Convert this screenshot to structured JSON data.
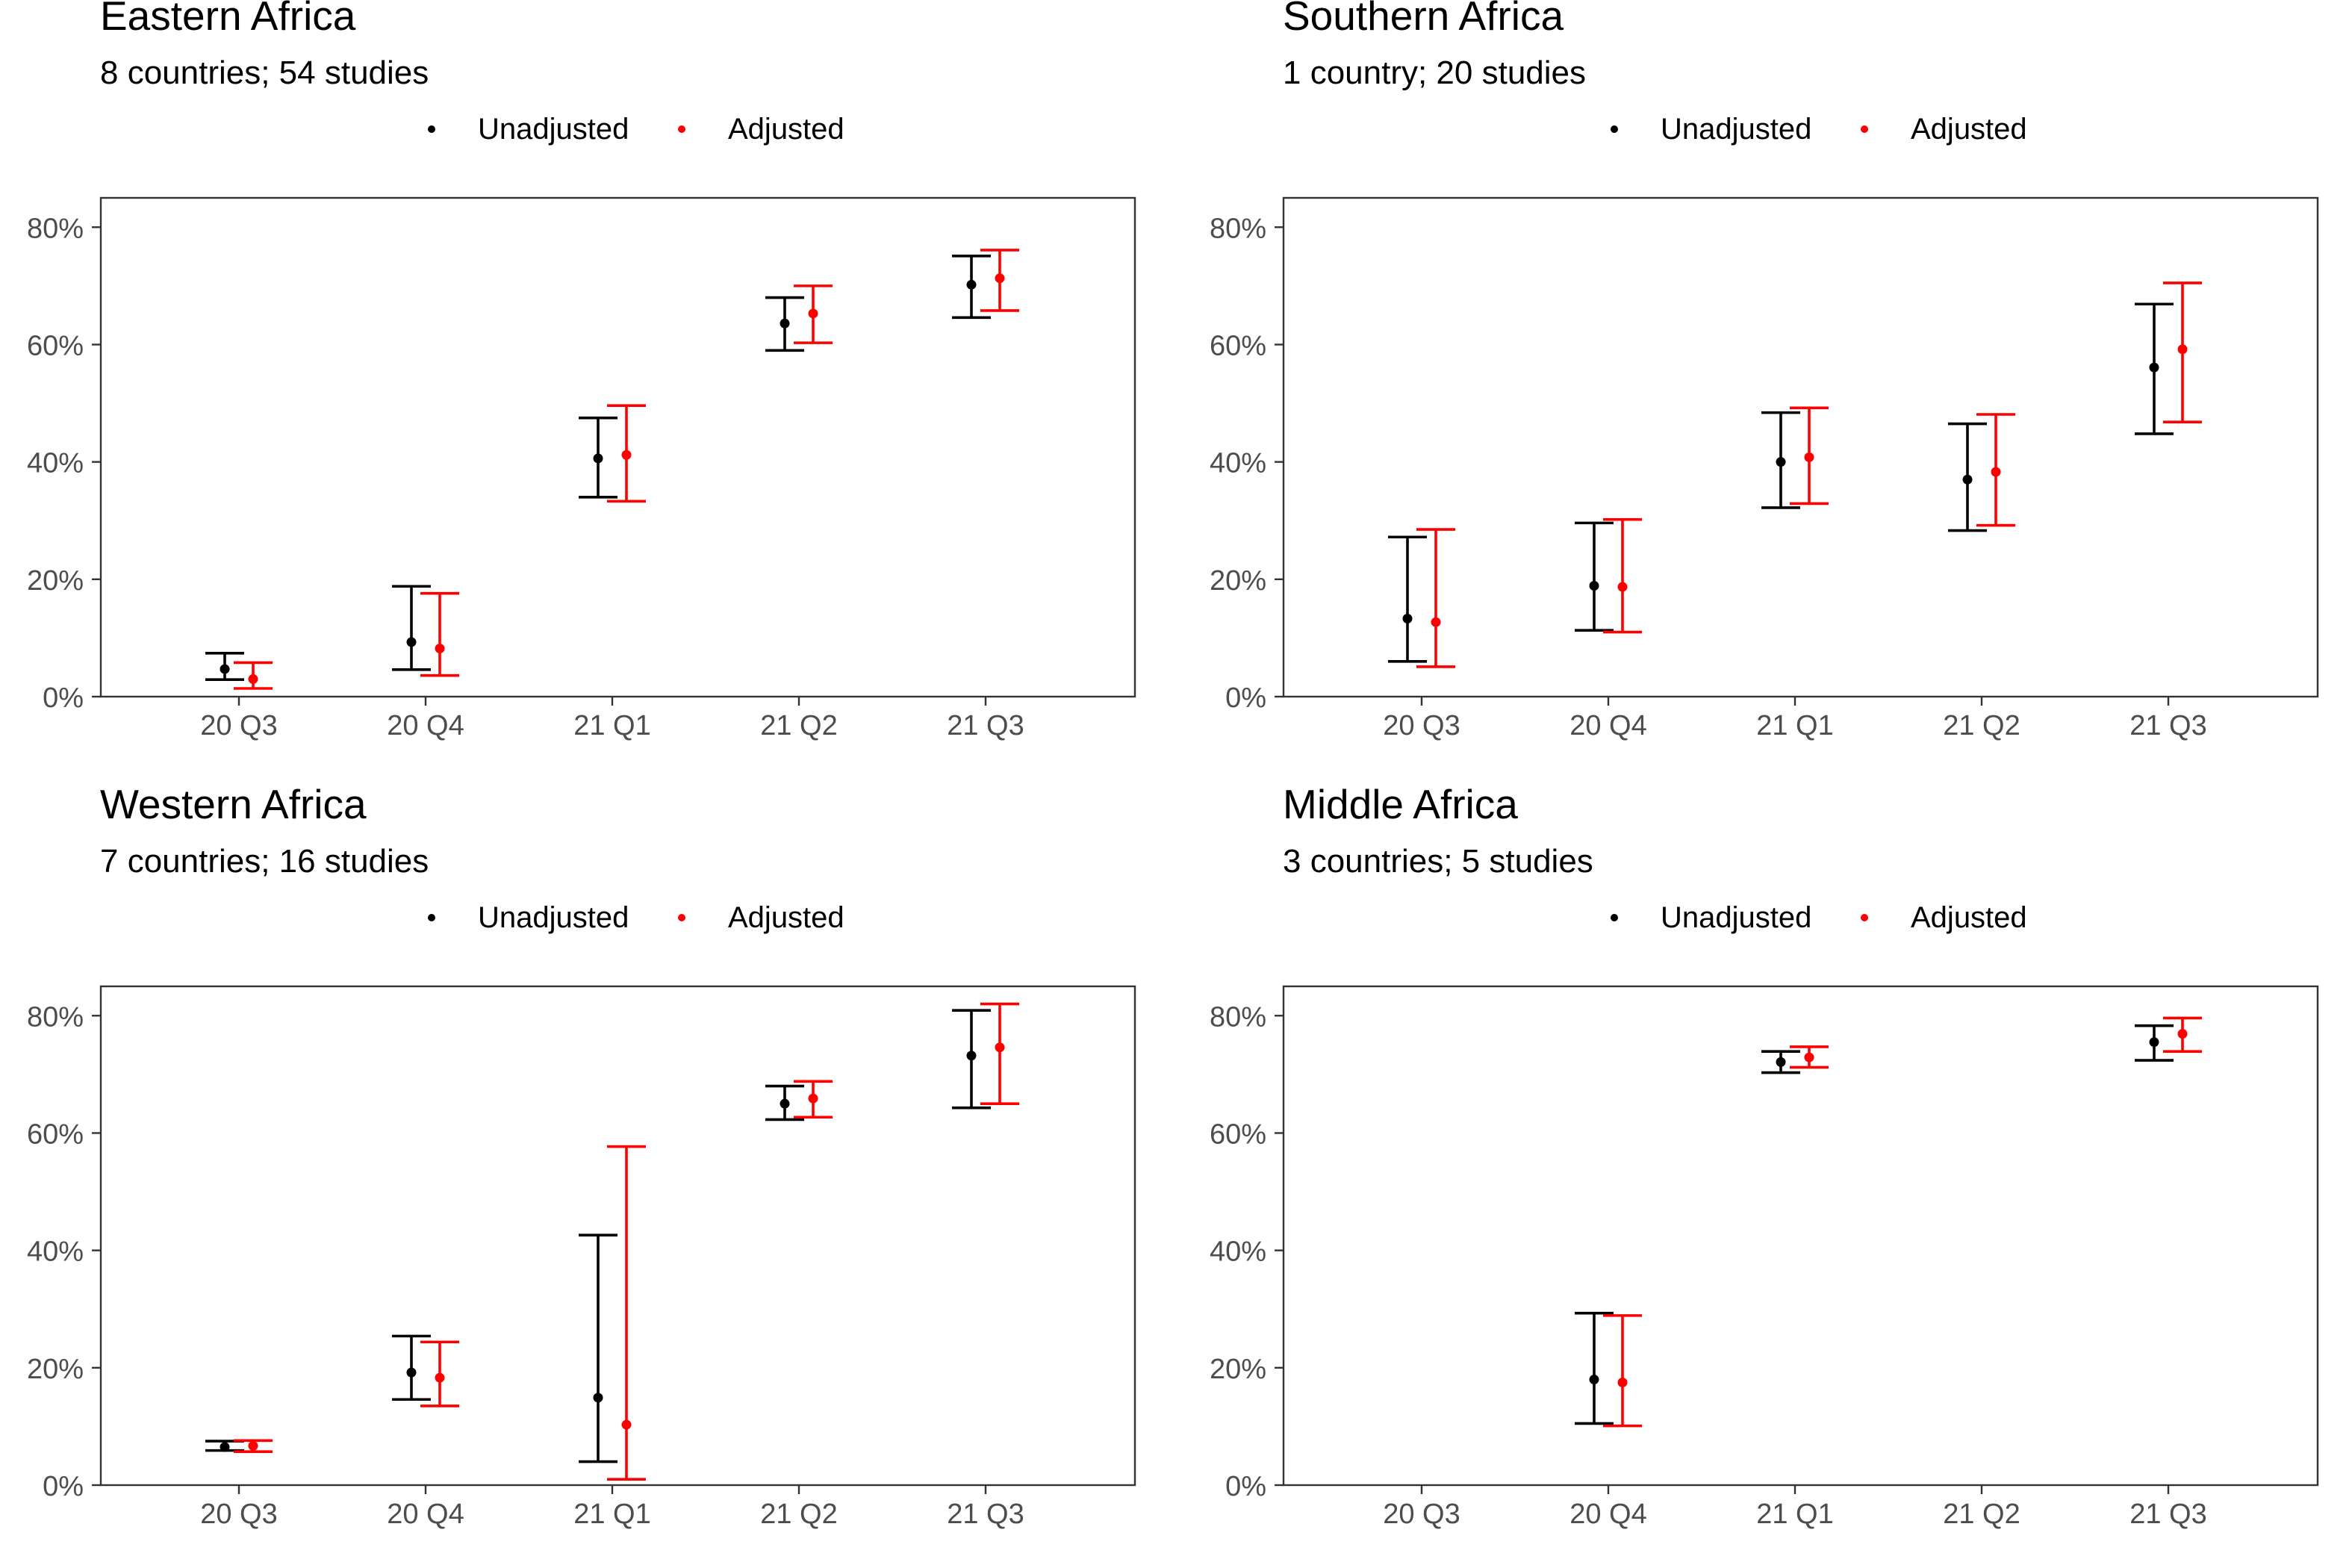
{
  "legend": {
    "unadjusted": "Unadjusted",
    "adjusted": "Adjusted"
  },
  "colors": {
    "unadjusted": "#000000",
    "adjusted": "#ff0000",
    "frame": "#333333",
    "tick_text": "#4d4d4d"
  },
  "chart_data": [
    {
      "type": "scatter",
      "title": "Eastern Africa",
      "subtitle": "8 countries; 54 studies",
      "categories": [
        "20 Q3",
        "20 Q4",
        "21 Q1",
        "21 Q2",
        "21 Q3"
      ],
      "y_ticks": [
        "0%",
        "20%",
        "40%",
        "60%",
        "80%"
      ],
      "ylim": [
        0,
        85
      ],
      "legend_position": "top",
      "grid": false,
      "series": [
        {
          "name": "Unadjusted",
          "values": [
            4.7,
            9.3,
            40.6,
            63.6,
            70.2
          ],
          "lower": [
            2.9,
            4.6,
            34.0,
            59.0,
            64.6
          ],
          "upper": [
            7.4,
            18.8,
            47.5,
            68.0,
            75.1
          ]
        },
        {
          "name": "Adjusted",
          "values": [
            3.0,
            8.2,
            41.2,
            65.3,
            71.3
          ],
          "lower": [
            1.4,
            3.6,
            33.3,
            60.3,
            65.8
          ],
          "upper": [
            5.8,
            17.6,
            49.6,
            70.0,
            76.1
          ]
        }
      ]
    },
    {
      "type": "scatter",
      "title": "Southern Africa",
      "subtitle": "1 country; 20 studies",
      "categories": [
        "20 Q3",
        "20 Q4",
        "21 Q1",
        "21 Q2",
        "21 Q3"
      ],
      "y_ticks": [
        "0%",
        "20%",
        "40%",
        "60%",
        "80%"
      ],
      "ylim": [
        0,
        85
      ],
      "legend_position": "top",
      "grid": false,
      "series": [
        {
          "name": "Unadjusted",
          "values": [
            13.3,
            18.9,
            40.0,
            37.0,
            56.1
          ],
          "lower": [
            6.0,
            11.3,
            32.2,
            28.3,
            44.8
          ],
          "upper": [
            27.2,
            29.6,
            48.4,
            46.5,
            66.9
          ]
        },
        {
          "name": "Adjusted",
          "values": [
            12.7,
            18.7,
            40.8,
            38.3,
            59.2
          ],
          "lower": [
            5.1,
            11.0,
            32.9,
            29.2,
            46.8
          ],
          "upper": [
            28.5,
            30.2,
            49.2,
            48.1,
            70.5
          ]
        }
      ]
    },
    {
      "type": "scatter",
      "title": "Western Africa",
      "subtitle": "7 countries; 16 studies",
      "categories": [
        "20 Q3",
        "20 Q4",
        "21 Q1",
        "21 Q2",
        "21 Q3"
      ],
      "y_ticks": [
        "0%",
        "20%",
        "40%",
        "60%",
        "80%"
      ],
      "ylim": [
        0,
        85
      ],
      "legend_position": "top",
      "grid": false,
      "series": [
        {
          "name": "Unadjusted",
          "values": [
            6.5,
            19.2,
            14.9,
            65.0,
            73.2
          ],
          "lower": [
            5.9,
            14.6,
            4.0,
            62.3,
            64.3
          ],
          "upper": [
            7.5,
            25.4,
            42.6,
            68.0,
            80.9
          ]
        },
        {
          "name": "Adjusted",
          "values": [
            6.7,
            18.3,
            10.3,
            65.9,
            74.6
          ],
          "lower": [
            5.7,
            13.5,
            1.0,
            62.7,
            65.0
          ],
          "upper": [
            7.6,
            24.4,
            57.7,
            68.8,
            82.0
          ]
        }
      ]
    },
    {
      "type": "scatter",
      "title": "Middle Africa",
      "subtitle": "3 countries; 5 studies",
      "categories": [
        "20 Q3",
        "20 Q4",
        "21 Q1",
        "21 Q2",
        "21 Q3"
      ],
      "y_ticks": [
        "0%",
        "20%",
        "40%",
        "60%",
        "80%"
      ],
      "ylim": [
        0,
        85
      ],
      "legend_position": "top",
      "grid": false,
      "series": [
        {
          "name": "Unadjusted",
          "values": [
            null,
            18.0,
            72.1,
            null,
            75.5
          ],
          "lower": [
            null,
            10.5,
            70.3,
            null,
            72.4
          ],
          "upper": [
            null,
            29.3,
            73.9,
            null,
            78.3
          ]
        },
        {
          "name": "Adjusted",
          "values": [
            null,
            17.5,
            72.9,
            null,
            76.9
          ],
          "lower": [
            null,
            10.1,
            71.2,
            null,
            73.9
          ],
          "upper": [
            null,
            28.9,
            74.7,
            null,
            79.6
          ]
        }
      ]
    }
  ]
}
